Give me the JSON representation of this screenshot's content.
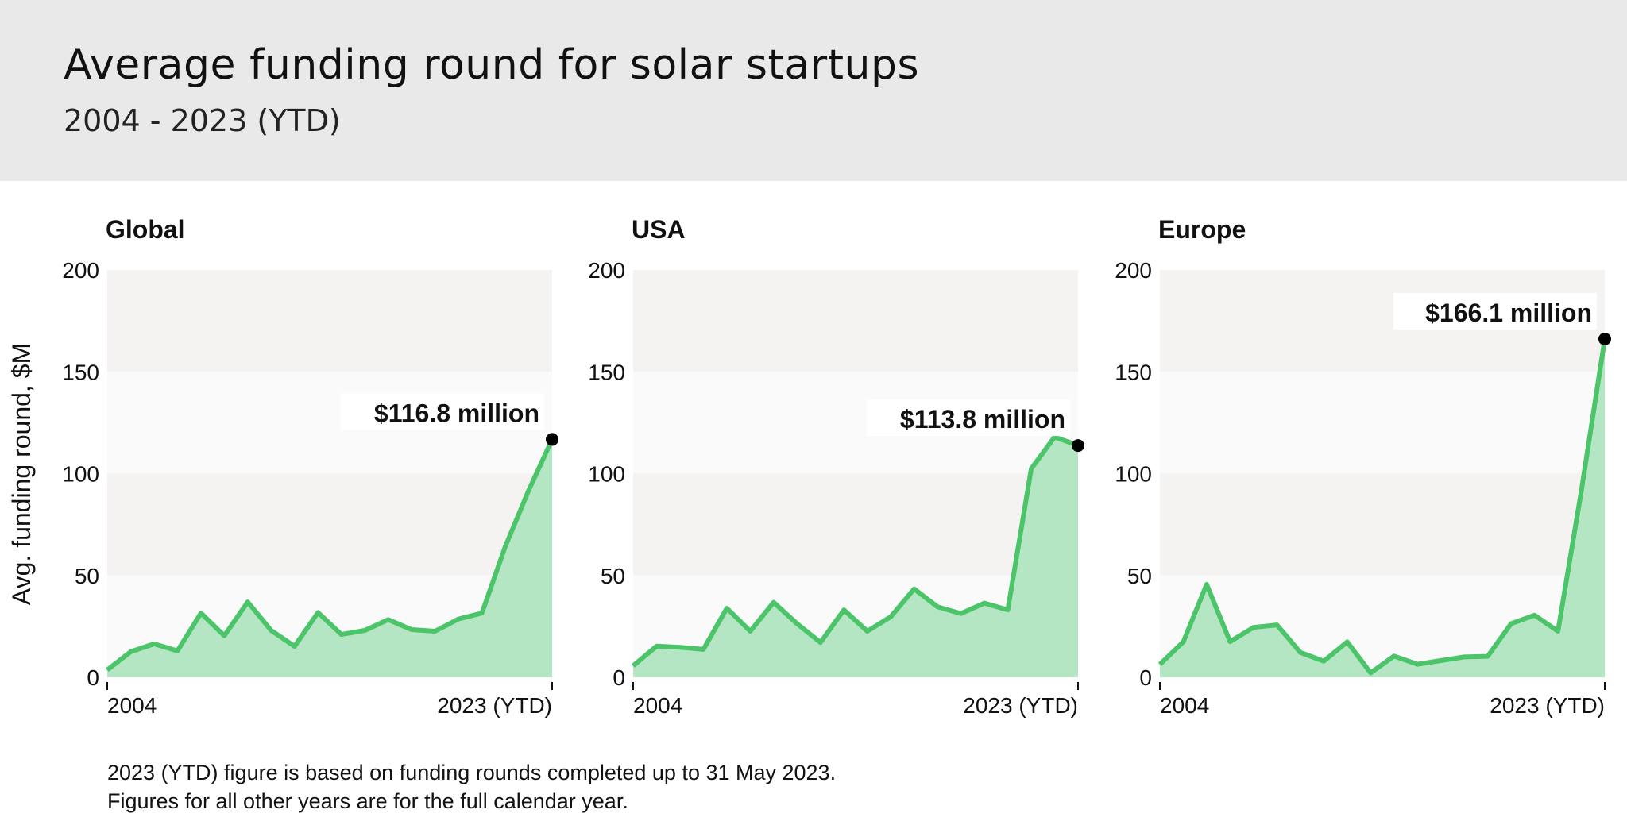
{
  "header": {
    "title": "Average funding round for solar startups",
    "subtitle": "2004 - 2023 (YTD)"
  },
  "footnote": [
    "2023 (YTD) figure is based on funding rounds completed up to 31 May 2023.",
    "Figures for all other years are for the full calendar year."
  ],
  "chart_data": {
    "type": "area",
    "ylabel": "Avg. funding round, $M",
    "ylim": [
      0,
      200
    ],
    "yticks": [
      "0",
      "50",
      "100",
      "150",
      "200"
    ],
    "x": [
      2004,
      2005,
      2006,
      2007,
      2008,
      2009,
      2010,
      2011,
      2012,
      2013,
      2014,
      2015,
      2016,
      2017,
      2018,
      2019,
      2020,
      2021,
      2022,
      2023
    ],
    "xtick_labels": [
      "2004",
      "2023 (YTD)"
    ],
    "grid": "alternating horizontal bands",
    "colors": {
      "line": "#4cc46a",
      "fill": "#b5e6c3",
      "band_dark": "#f4f3f2",
      "band_light": "#fafafa",
      "marker": "#000000"
    },
    "panels": [
      {
        "name": "Global",
        "annotation": "$116.8 million",
        "values": [
          3.6,
          12.5,
          16.4,
          13,
          31.5,
          20.4,
          37,
          23,
          15.2,
          31.8,
          21,
          23,
          28.3,
          23.4,
          22.6,
          28.6,
          31.5,
          64.3,
          91.8,
          116.8
        ]
      },
      {
        "name": "USA",
        "annotation": "$113.8 million",
        "values": [
          5.6,
          15.3,
          14.7,
          13.7,
          33.9,
          22.6,
          36.8,
          26.3,
          17.1,
          33.1,
          22.6,
          29.7,
          43.4,
          34.6,
          31.3,
          36.4,
          33.1,
          102.4,
          118,
          113.8
        ]
      },
      {
        "name": "Europe",
        "annotation": "$166.1 million",
        "values": [
          6.3,
          17.4,
          45.6,
          17.5,
          24.5,
          25.7,
          12.2,
          7.9,
          17.4,
          2.2,
          10.4,
          6.4,
          8.2,
          10,
          10.3,
          26.3,
          30.5,
          22.6,
          91.5,
          166.1
        ]
      }
    ]
  }
}
